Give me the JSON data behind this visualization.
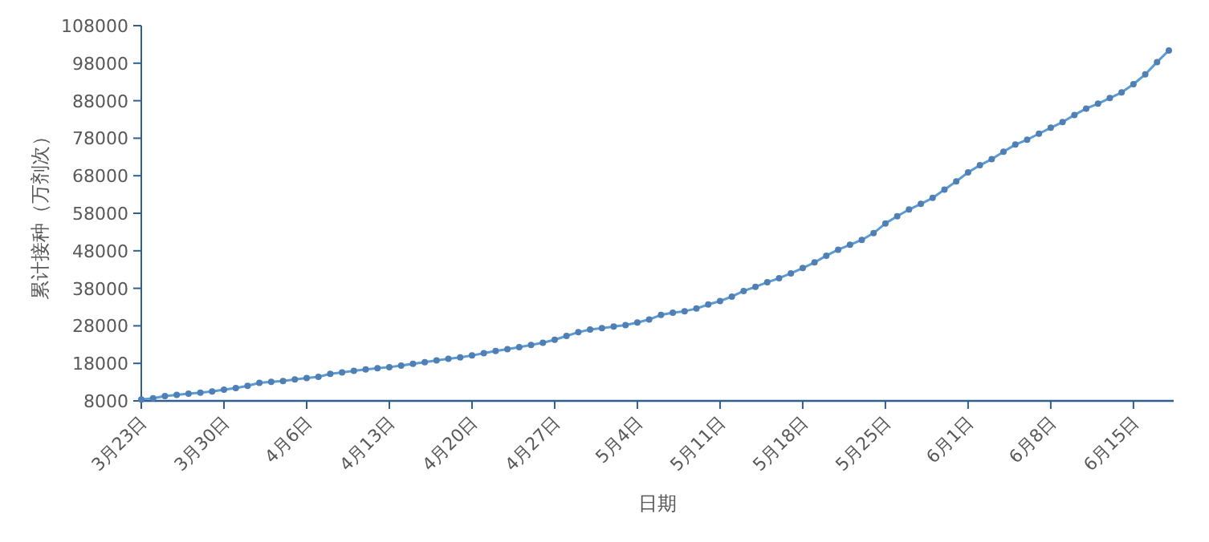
{
  "chart_data": {
    "type": "line",
    "xlabel": "日期",
    "ylabel": "累计接种（万剂次）",
    "categories": [
      "3月23日",
      null,
      null,
      null,
      null,
      null,
      null,
      "3月30日",
      null,
      null,
      null,
      null,
      null,
      null,
      "4月6日",
      null,
      null,
      null,
      null,
      null,
      null,
      "4月13日",
      null,
      null,
      null,
      null,
      null,
      null,
      "4月20日",
      null,
      null,
      null,
      null,
      null,
      null,
      "4月27日",
      null,
      null,
      null,
      null,
      null,
      null,
      "5月4日",
      null,
      null,
      null,
      null,
      null,
      null,
      "5月11日",
      null,
      null,
      null,
      null,
      null,
      null,
      "5月18日",
      null,
      null,
      null,
      null,
      null,
      null,
      "5月25日",
      null,
      null,
      null,
      null,
      null,
      null,
      "6月1日",
      null,
      null,
      null,
      null,
      null,
      null,
      "6月8日",
      null,
      null,
      null,
      null,
      null,
      null,
      "6月15日",
      null,
      null,
      null
    ],
    "values": [
      8400,
      8700,
      9300,
      9600,
      9900,
      10200,
      10500,
      11000,
      11400,
      12000,
      12800,
      13100,
      13300,
      13700,
      14100,
      14400,
      15200,
      15600,
      16000,
      16400,
      16700,
      17000,
      17400,
      17900,
      18300,
      18800,
      19200,
      19600,
      20100,
      20700,
      21300,
      21800,
      22300,
      22900,
      23500,
      24300,
      25300,
      26300,
      27000,
      27400,
      27800,
      28200,
      28900,
      29700,
      30900,
      31500,
      31900,
      32600,
      33700,
      34600,
      35800,
      37300,
      38400,
      39600,
      40700,
      42000,
      43400,
      44900,
      46700,
      48300,
      49600,
      50900,
      52700,
      55300,
      57200,
      59000,
      60500,
      62100,
      64300,
      66500,
      68900,
      70800,
      72400,
      74400,
      76300,
      77600,
      79200,
      80800,
      82300,
      84200,
      85900,
      87200,
      88700,
      90200,
      92400,
      95000,
      98300,
      101400
    ],
    "color": "#5b9bd5",
    "marker": "circle",
    "ylim": [
      8000,
      108000
    ],
    "yticks": [
      8000,
      18000,
      28000,
      38000,
      48000,
      58000,
      68000,
      78000,
      88000,
      98000,
      108000
    ]
  }
}
